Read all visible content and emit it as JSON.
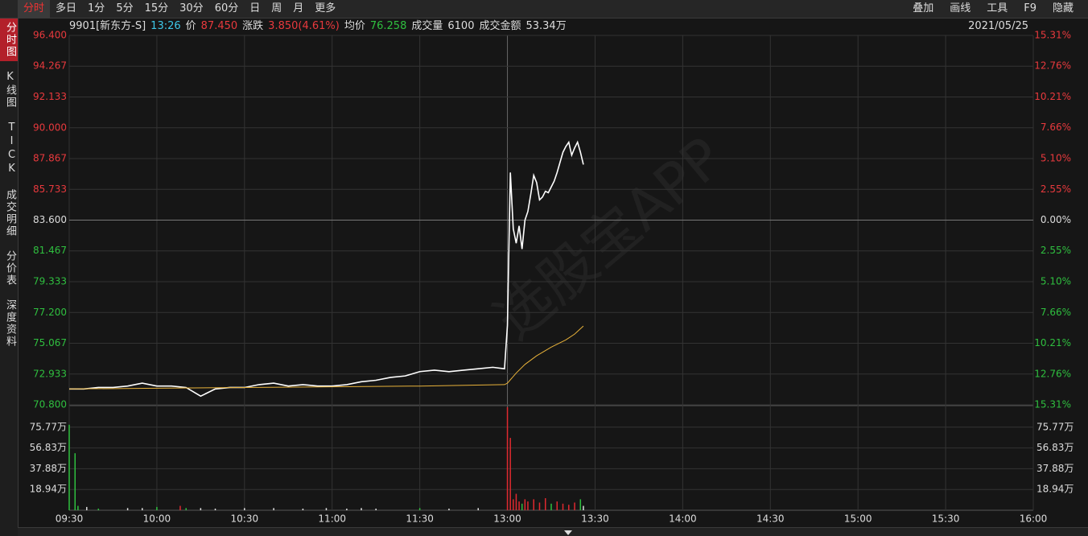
{
  "toolbar": {
    "tabs": [
      "分时",
      "多日",
      "1分",
      "5分",
      "15分",
      "30分",
      "60分",
      "日",
      "周",
      "月",
      "更多"
    ],
    "tools": [
      "叠加",
      "画线",
      "工具",
      "F9",
      "隐藏"
    ]
  },
  "sidebar": [
    "分时图",
    "K线图",
    "TICK",
    "成交明细",
    "分价表",
    "深度资料"
  ],
  "info": {
    "symbol": "9901[新东方-S]",
    "time": "13:26",
    "price_label": "价",
    "price": "87.450",
    "change_label": "涨跌",
    "change": "3.850(4.61%)",
    "avg_label": "均价",
    "avg": "76.258",
    "volume_label": "成交量",
    "volume": "6100",
    "amount_label": "成交金额",
    "amount": "53.34万",
    "date": "2021/05/25"
  },
  "watermark": "选股宝APP",
  "chart_data": [
    {
      "type": "line",
      "xlim": [
        0,
        330
      ],
      "xticks": [
        {
          "value": 0,
          "label": "09:30"
        },
        {
          "value": 30,
          "label": "10:00"
        },
        {
          "value": 60,
          "label": "10:30"
        },
        {
          "value": 90,
          "label": "11:00"
        },
        {
          "value": 120,
          "label": "11:30"
        },
        {
          "value": 150,
          "label": "13:00"
        },
        {
          "value": 180,
          "label": "13:30"
        },
        {
          "value": 210,
          "label": "14:00"
        },
        {
          "value": 240,
          "label": "14:30"
        },
        {
          "value": 270,
          "label": "15:00"
        },
        {
          "value": 300,
          "label": "15:30"
        },
        {
          "value": 330,
          "label": "16:00"
        }
      ],
      "ylim": [
        70.8,
        96.4
      ],
      "yticks": [
        {
          "value": 96.4,
          "label": "96.400"
        },
        {
          "value": 94.267,
          "label": "94.267"
        },
        {
          "value": 92.133,
          "label": "92.133"
        },
        {
          "value": 90,
          "label": "90.000"
        },
        {
          "value": 87.867,
          "label": "87.867"
        },
        {
          "value": 85.733,
          "label": "85.733"
        },
        {
          "value": 83.6,
          "label": "83.600"
        },
        {
          "value": 81.467,
          "label": "81.467"
        },
        {
          "value": 79.333,
          "label": "79.333"
        },
        {
          "value": 77.2,
          "label": "77.200"
        },
        {
          "value": 75.067,
          "label": "75.067"
        },
        {
          "value": 72.933,
          "label": "72.933"
        },
        {
          "value": 70.8,
          "label": "70.800"
        }
      ],
      "y2lim": [
        -15.31,
        15.31
      ],
      "y2ticks": [
        {
          "value": 15.31,
          "label": "15.31%"
        },
        {
          "value": 12.76,
          "label": "12.76%"
        },
        {
          "value": 10.21,
          "label": "10.21%"
        },
        {
          "value": 7.66,
          "label": "7.66%"
        },
        {
          "value": 5.1,
          "label": "5.10%"
        },
        {
          "value": 2.55,
          "label": "2.55%"
        },
        {
          "value": 0,
          "label": "0.00%"
        },
        {
          "value": -2.55,
          "label": "2.55%"
        },
        {
          "value": -5.1,
          "label": "5.10%"
        },
        {
          "value": -7.66,
          "label": "7.66%"
        },
        {
          "value": -10.21,
          "label": "10.21%"
        },
        {
          "value": -12.76,
          "label": "12.76%"
        },
        {
          "value": -15.31,
          "label": "15.31%"
        }
      ],
      "grid": true,
      "series": [
        {
          "color": "#ffffff",
          "x": [
            0,
            5,
            10,
            15,
            20,
            25,
            30,
            35,
            40,
            45,
            50,
            55,
            60,
            65,
            70,
            75,
            80,
            85,
            90,
            95,
            100,
            105,
            110,
            115,
            120,
            125,
            130,
            135,
            140,
            145,
            149,
            150,
            151,
            152,
            153,
            154,
            155,
            156,
            157,
            158,
            159,
            160,
            161,
            162,
            163,
            164,
            165,
            166,
            167,
            168,
            169,
            170,
            171,
            172,
            173,
            174,
            175,
            176
          ],
          "values": [
            71.9,
            71.9,
            72,
            72,
            72.1,
            72.3,
            72.1,
            72.1,
            72,
            71.4,
            71.9,
            72,
            72,
            72.2,
            72.3,
            72.1,
            72.2,
            72.1,
            72.1,
            72.2,
            72.4,
            72.5,
            72.7,
            72.8,
            73.1,
            73.2,
            73.1,
            73.2,
            73.3,
            73.4,
            73.3,
            76.3,
            86.9,
            83,
            82,
            83.2,
            81.6,
            83.6,
            84.2,
            85.4,
            86.7,
            86.2,
            85,
            85.2,
            85.6,
            85.5,
            85.9,
            86.3,
            86.9,
            87.6,
            88.3,
            88.7,
            89,
            88.1,
            88.6,
            89,
            88.3,
            87.45
          ]
        },
        {
          "color": "#e8b23a",
          "x": [
            0,
            30,
            60,
            90,
            120,
            149,
            150,
            153,
            156,
            160,
            165,
            170,
            173,
            176
          ],
          "values": [
            71.9,
            71.95,
            72,
            72.05,
            72.1,
            72.2,
            72.3,
            73,
            73.6,
            74.2,
            74.8,
            75.3,
            75.7,
            76.258
          ]
        }
      ]
    },
    {
      "type": "bar",
      "xlim": [
        0,
        330
      ],
      "ylim": [
        0,
        94.71
      ],
      "yticks": [
        {
          "value": 75.77,
          "label": "75.77万"
        },
        {
          "value": 56.83,
          "label": "56.83万"
        },
        {
          "value": 37.88,
          "label": "37.88万"
        },
        {
          "value": 18.94,
          "label": "18.94万"
        }
      ],
      "grid": true,
      "x": [
        0,
        2,
        3,
        6,
        10,
        20,
        25,
        30,
        38,
        40,
        45,
        50,
        60,
        70,
        80,
        88,
        95,
        100,
        105,
        120,
        130,
        140,
        150,
        151,
        152,
        153,
        154,
        155,
        156,
        157,
        159,
        161,
        163,
        165,
        167,
        169,
        171,
        173,
        175,
        176
      ],
      "values": [
        78,
        52,
        4,
        3,
        1.5,
        2,
        2,
        3,
        4,
        2,
        2,
        1.5,
        2,
        2,
        1.5,
        2,
        1.5,
        2,
        1.5,
        2,
        1.5,
        2,
        94,
        66,
        10,
        15,
        8,
        6,
        10,
        8,
        10,
        7,
        11,
        6,
        8,
        6,
        5,
        7,
        10,
        4
      ],
      "colors": [
        "#2fbf3f",
        "#2fbf3f",
        "#2fbf3f",
        "#dddddd",
        "#2fbf3f",
        "#dddddd",
        "#dddddd",
        "#2fbf3f",
        "#e0292f",
        "#2fbf3f",
        "#dddddd",
        "#dddddd",
        "#dddddd",
        "#dddddd",
        "#dddddd",
        "#dddddd",
        "#dddddd",
        "#dddddd",
        "#dddddd",
        "#2fbf3f",
        "#dddddd",
        "#dddddd",
        "#e0292f",
        "#e0292f",
        "#e0292f",
        "#e0292f",
        "#e0292f",
        "#2fbf3f",
        "#e0292f",
        "#e0292f",
        "#e0292f",
        "#e0292f",
        "#e0292f",
        "#2fbf3f",
        "#e0292f",
        "#e0292f",
        "#e0292f",
        "#e0292f",
        "#2fbf3f",
        "#dddddd"
      ]
    }
  ]
}
